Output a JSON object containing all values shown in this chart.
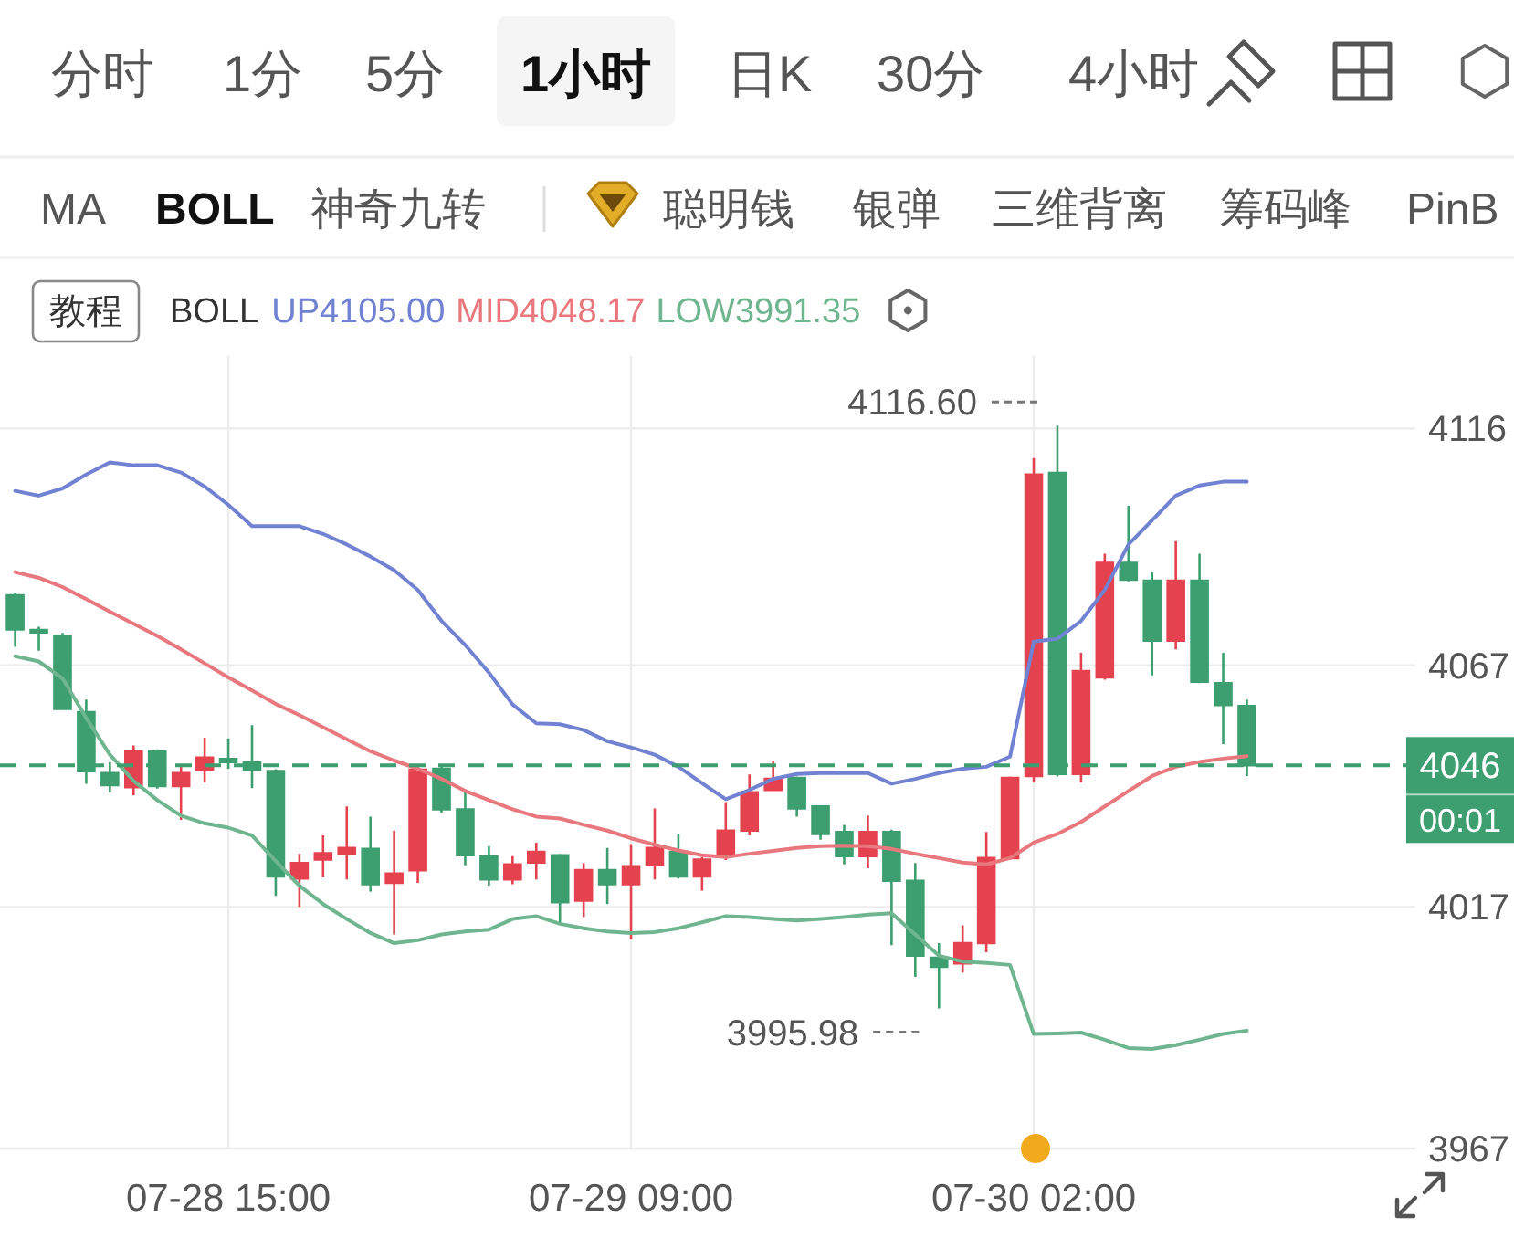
{
  "chart_data": {
    "type": "candlestick",
    "categories": [
      null,
      null,
      null,
      null,
      null,
      null,
      null,
      null,
      null,
      "07-28 15:00",
      null,
      null,
      null,
      null,
      null,
      null,
      null,
      null,
      null,
      null,
      null,
      null,
      null,
      null,
      null,
      null,
      "07-29 09:00",
      null,
      null,
      null,
      null,
      null,
      null,
      null,
      null,
      null,
      null,
      null,
      null,
      null,
      null,
      null,
      null,
      "07-30 02:00",
      null,
      null,
      null,
      null,
      null,
      null,
      null,
      null,
      null
    ],
    "ohlc": [
      [
        4081.5,
        4082.0,
        4070.8,
        4074.4
      ],
      [
        4074.3,
        4075.0,
        4070.0,
        4073.8
      ],
      [
        4073.1,
        4073.7,
        4057.8,
        4058.0
      ],
      [
        4057.3,
        4059.9,
        4042.5,
        4045.1
      ],
      [
        4044.7,
        4046.9,
        4040.7,
        4042.2
      ],
      [
        4041.8,
        4050.4,
        4040.1,
        4049.2
      ],
      [
        4049.2,
        4049.6,
        4041.5,
        4042.0
      ],
      [
        4042.0,
        4046.0,
        4035.0,
        4044.7
      ],
      [
        4045.4,
        4052.0,
        4042.8,
        4047.9
      ],
      [
        4047.6,
        4051.9,
        4045.6,
        4047.0
      ],
      [
        4046.9,
        4054.6,
        4041.6,
        4045.4
      ],
      [
        4045.1,
        4045.5,
        4019.3,
        4023.3
      ],
      [
        4022.9,
        4028.0,
        4017.0,
        4026.1
      ],
      [
        4026.8,
        4031.8,
        4023.1,
        4028.1
      ],
      [
        4028.0,
        4037.8,
        4022.7,
        4029.2
      ],
      [
        4029.0,
        4035.7,
        4020.2,
        4021.7
      ],
      [
        4022.0,
        4032.8,
        4011.3,
        4023.9
      ],
      [
        4024.6,
        4046.0,
        4022.0,
        4045.4
      ],
      [
        4045.6,
        4046.0,
        4036.5,
        4037.2
      ],
      [
        4037.2,
        4041.3,
        4025.6,
        4027.7
      ],
      [
        4027.5,
        4029.6,
        4021.4,
        4022.7
      ],
      [
        4022.7,
        4027.5,
        4021.7,
        4025.8
      ],
      [
        4026.2,
        4030.3,
        4022.7,
        4028.4
      ],
      [
        4027.7,
        4028.0,
        4013.5,
        4018.0
      ],
      [
        4018.3,
        4026.1,
        4014.9,
        4024.6
      ],
      [
        4024.6,
        4029.2,
        4017.6,
        4021.7
      ],
      [
        4021.7,
        4030.0,
        4010.3,
        4025.4
      ],
      [
        4025.8,
        4037.4,
        4022.7,
        4029.2
      ],
      [
        4028.4,
        4032.1,
        4022.9,
        4023.3
      ],
      [
        4023.3,
        4027.3,
        4020.4,
        4026.8
      ],
      [
        4027.7,
        4038.7,
        4026.7,
        4032.8
      ],
      [
        4032.8,
        4044.4,
        4031.8,
        4040.7
      ],
      [
        4041.2,
        4047.3,
        4041.0,
        4043.5
      ],
      [
        4043.7,
        4044.0,
        4035.7,
        4037.4
      ],
      [
        4037.8,
        4038.0,
        4030.9,
        4032.1
      ],
      [
        4032.5,
        4034.0,
        4025.8,
        4027.5
      ],
      [
        4027.5,
        4035.9,
        4025.0,
        4032.5
      ],
      [
        4032.5,
        4033.0,
        4009.1,
        4022.4
      ],
      [
        4022.4,
        4026.1,
        4002.5,
        4006.9
      ],
      [
        4006.5,
        4009.5,
        3995.98,
        4004.6
      ],
      [
        4005.3,
        4013.2,
        4003.4,
        4009.5
      ],
      [
        4009.5,
        4032.5,
        4007.6,
        4027.1
      ],
      [
        4027.1,
        4044.0,
        4026.8,
        4043.7
      ],
      [
        4044.1,
        4109.9,
        4042.8,
        4106.5
      ],
      [
        4106.8,
        4116.6,
        4044.0,
        4044.5
      ],
      [
        4044.5,
        4069.6,
        4042.8,
        4065.8
      ],
      [
        4064.5,
        4090.1,
        4064.0,
        4088.2
      ],
      [
        4088.2,
        4100.0,
        4084.4,
        4084.7
      ],
      [
        4084.5,
        4086.3,
        4064.9,
        4072.1
      ],
      [
        4072.1,
        4092.7,
        4070.3,
        4084.5
      ],
      [
        4084.5,
        4090.1,
        4063.3,
        4063.6
      ],
      [
        4063.3,
        4069.6,
        4050.7,
        4058.8
      ],
      [
        4058.6,
        4059.9,
        4044.1,
        4046.3
      ]
    ],
    "colors": [
      "#3d9f70",
      "#3d9f70",
      "#3d9f70",
      "#3d9f70",
      "#3d9f70",
      "#e5424f",
      "#3d9f70",
      "#e5424f",
      "#e5424f",
      "#3d9f70",
      "#3d9f70",
      "#3d9f70",
      "#e5424f",
      "#e5424f",
      "#e5424f",
      "#3d9f70",
      "#e5424f",
      "#e5424f",
      "#3d9f70",
      "#3d9f70",
      "#3d9f70",
      "#e5424f",
      "#e5424f",
      "#3d9f70",
      "#e5424f",
      "#3d9f70",
      "#e5424f",
      "#e5424f",
      "#3d9f70",
      "#e5424f",
      "#e5424f",
      "#e5424f",
      "#e5424f",
      "#3d9f70",
      "#3d9f70",
      "#3d9f70",
      "#e5424f",
      "#3d9f70",
      "#3d9f70",
      "#3d9f70",
      "#e5424f",
      "#e5424f",
      "#e5424f",
      "#e5424f",
      "#3d9f70",
      "#e5424f",
      "#e5424f",
      "#3d9f70",
      "#3d9f70",
      "#e5424f",
      "#3d9f70",
      "#3d9f70",
      "#3d9f70"
    ],
    "series": [
      {
        "name": "UP4105.00",
        "type": "line",
        "color": "#7282d2",
        "values": [
          4103.1,
          4102.1,
          4103.6,
          4106.5,
          4109.0,
          4108.4,
          4108.4,
          4106.9,
          4104.0,
          4100.2,
          4095.8,
          4095.8,
          4095.8,
          4094.2,
          4092.0,
          4089.5,
          4086.7,
          4082.6,
          4076.2,
          4071.2,
          4065.5,
          4058.9,
          4055.0,
          4054.8,
          4053.6,
          4051.3,
          4050.0,
          4048.5,
          4046.0,
          4042.6,
          4039.3,
          4041.2,
          4043.5,
          4044.5,
          4044.7,
          4044.7,
          4044.7,
          4042.5,
          4043.5,
          4044.7,
          4045.6,
          4046.0,
          4048.1,
          4071.9,
          4072.5,
          4076.2,
          4082.6,
          4092.0,
          4097.0,
          4102.1,
          4104.2,
          4105.0,
          4105.0
        ]
      },
      {
        "name": "MID4048.17",
        "type": "line",
        "color": "#e8787e",
        "values": [
          4086.3,
          4085.1,
          4083.2,
          4080.7,
          4078.1,
          4075.6,
          4073.1,
          4070.3,
          4067.4,
          4064.5,
          4061.8,
          4059.0,
          4056.7,
          4054.2,
          4051.7,
          4049.2,
          4047.3,
          4045.6,
          4043.5,
          4041.0,
          4039.1,
          4037.2,
          4035.7,
          4035.3,
          4034.0,
          4032.8,
          4031.2,
          4029.9,
          4028.7,
          4027.7,
          4027.3,
          4028.0,
          4028.6,
          4029.2,
          4029.6,
          4029.7,
          4029.6,
          4029.0,
          4028.0,
          4027.1,
          4026.2,
          4025.8,
          4027.1,
          4030.3,
          4032.1,
          4034.6,
          4037.8,
          4041.0,
          4044.1,
          4046.0,
          4047.0,
          4047.7,
          4048.2
        ]
      },
      {
        "name": "LOW3991.35",
        "type": "line",
        "color": "#6fb690",
        "values": [
          4068.9,
          4067.8,
          4064.3,
          4056.1,
          4048.5,
          4043.1,
          4039.1,
          4035.9,
          4034.3,
          4033.4,
          4031.8,
          4026.5,
          4021.4,
          4017.6,
          4014.5,
          4011.6,
          4009.5,
          4010.1,
          4011.3,
          4011.9,
          4012.3,
          4014.5,
          4015.1,
          4013.5,
          4012.6,
          4011.9,
          4011.6,
          4011.8,
          4012.6,
          4013.8,
          4015.1,
          4014.9,
          4014.5,
          4014.2,
          4014.5,
          4014.9,
          4015.4,
          4015.7,
          4011.3,
          4006.9,
          4005.7,
          4005.4,
          4005.0,
          3990.7,
          3990.8,
          3991.0,
          3989.5,
          3987.8,
          3987.6,
          3988.4,
          3989.5,
          3990.7,
          3991.4
        ]
      }
    ],
    "legend_title": "BOLL",
    "legend": "top",
    "grid": true,
    "ylim": [
      3967,
      4131
    ],
    "yticks": [
      4116,
      4067,
      4017,
      3967
    ],
    "ref_lines": [
      {
        "axis": "y",
        "value": 4046.3,
        "label": "4046",
        "color": "#3d9f70",
        "line_style": "dashed"
      }
    ],
    "annotations": [
      "分时",
      "1分",
      "5分",
      "1小时",
      "日K",
      "30分",
      "4小时",
      "MA",
      "BOLL",
      "神奇九转",
      "聪明钱",
      "银弹",
      "三维背离",
      "筹码峰",
      "PinB",
      "教程",
      "00:01",
      "4116.60",
      "3995.98"
    ]
  }
}
